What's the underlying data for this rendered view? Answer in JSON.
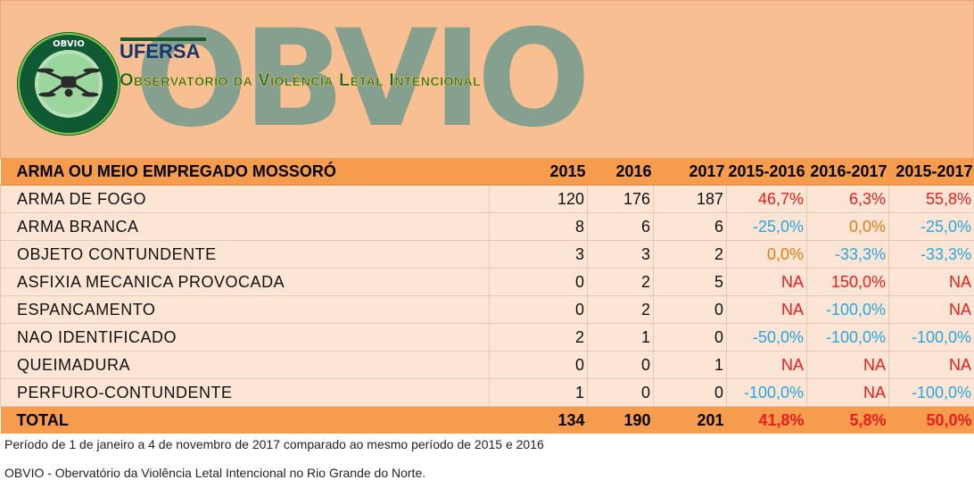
{
  "header": {
    "watermark": "OBVIO",
    "logo_text_top": "OBVIO",
    "logo_text_ring": "OBSERVATÓRIO DA VIOLÊNCIA LETAL INTENCIONAL",
    "ufersa": "UFERSA",
    "title": "Observatório da Violência Letal Intencional",
    "colors": {
      "banner": "#f8bf92",
      "watermark": "#7f9f8f",
      "title": "#0e6034"
    }
  },
  "table": {
    "headers": [
      "ARMA OU MEIO EMPREGADO MOSSORÓ",
      "2015",
      "2016",
      "2017",
      "2015-2016",
      "2016-2017",
      "2015-2017"
    ],
    "rows": [
      {
        "label": "ARMA DE FOGO",
        "v2015": "120",
        "v2016": "176",
        "v2017": "187",
        "d1516": "46,7%",
        "d1617": "6,3%",
        "d1517": "55,8%"
      },
      {
        "label": "ARMA BRANCA",
        "v2015": "8",
        "v2016": "6",
        "v2017": "6",
        "d1516": "-25,0%",
        "d1617": "0,0%",
        "d1517": "-25,0%"
      },
      {
        "label": "OBJETO CONTUNDENTE",
        "v2015": "3",
        "v2016": "3",
        "v2017": "2",
        "d1516": "0,0%",
        "d1617": "-33,3%",
        "d1517": "-33,3%"
      },
      {
        "label": "ASFIXIA MECANICA PROVOCADA",
        "v2015": "0",
        "v2016": "2",
        "v2017": "5",
        "d1516": "NA",
        "d1617": "150,0%",
        "d1517": "NA"
      },
      {
        "label": "ESPANCAMENTO",
        "v2015": "0",
        "v2016": "2",
        "v2017": "0",
        "d1516": "NA",
        "d1617": "-100,0%",
        "d1517": "NA"
      },
      {
        "label": "NAO IDENTIFICADO",
        "v2015": "2",
        "v2016": "1",
        "v2017": "0",
        "d1516": "-50,0%",
        "d1617": "-100,0%",
        "d1517": "-100,0%"
      },
      {
        "label": "QUEIMADURA",
        "v2015": "0",
        "v2016": "0",
        "v2017": "1",
        "d1516": "NA",
        "d1617": "NA",
        "d1517": "NA"
      },
      {
        "label": "PERFURO-CONTUNDENTE",
        "v2015": "1",
        "v2016": "0",
        "v2017": "0",
        "d1516": "-100,0%",
        "d1617": "NA",
        "d1517": "-100,0%"
      }
    ],
    "total": {
      "label": "TOTAL",
      "v2015": "134",
      "v2016": "190",
      "v2017": "201",
      "d1516": "41,8%",
      "d1617": "5,8%",
      "d1517": "50,0%"
    },
    "colors": {
      "increase": "#ee1c1c",
      "decrease": "#29a6de",
      "zero": "#e07d16",
      "header_bg": "#f59c4f",
      "row_bg": "#fce5d4"
    }
  },
  "footer": {
    "period": "Período de 1 de janeiro a 4 de novembro de 2017 comparado ao mesmo período de 2015 e 2016",
    "source": "OBVIO - Obervatório da Violência Letal Intencional no Rio Grande do Norte."
  }
}
